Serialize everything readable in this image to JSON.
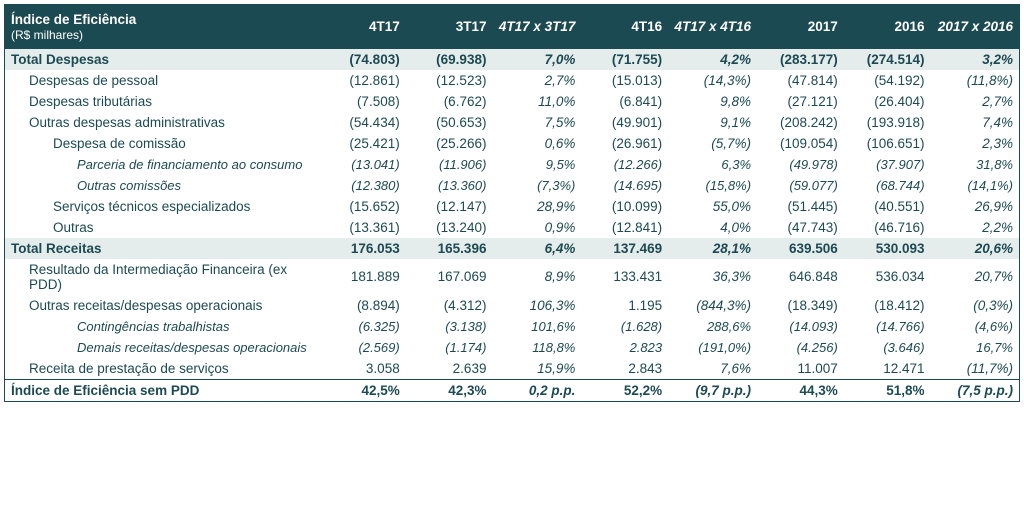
{
  "header": {
    "title_l1": "Índice de Eficiência",
    "title_l2": "(R$ milhares)",
    "cols": [
      "4T17",
      "3T17",
      "4T17 x 3T17",
      "4T16",
      "4T17 x 4T16",
      "2017",
      "2016",
      "2017 x 2016"
    ],
    "em_cols": [
      2,
      4,
      7
    ]
  },
  "rows": [
    {
      "type": "total",
      "label": "Total Despesas",
      "v": [
        "(74.803)",
        "(69.938)",
        "7,0%",
        "(71.755)",
        "4,2%",
        "(283.177)",
        "(274.514)",
        "3,2%"
      ]
    },
    {
      "type": "i1",
      "label": "Despesas de pessoal",
      "v": [
        "(12.861)",
        "(12.523)",
        "2,7%",
        "(15.013)",
        "(14,3%)",
        "(47.814)",
        "(54.192)",
        "(11,8%)"
      ]
    },
    {
      "type": "i1",
      "label": "Despesas tributárias",
      "v": [
        "(7.508)",
        "(6.762)",
        "11,0%",
        "(6.841)",
        "9,8%",
        "(27.121)",
        "(26.404)",
        "2,7%"
      ]
    },
    {
      "type": "i1",
      "label": "Outras despesas administrativas",
      "v": [
        "(54.434)",
        "(50.653)",
        "7,5%",
        "(49.901)",
        "9,1%",
        "(208.242)",
        "(193.918)",
        "7,4%"
      ]
    },
    {
      "type": "i2",
      "label": "Despesa de comissão",
      "v": [
        "(25.421)",
        "(25.266)",
        "0,6%",
        "(26.961)",
        "(5,7%)",
        "(109.054)",
        "(106.651)",
        "2,3%"
      ]
    },
    {
      "type": "i3",
      "label": "Parceria de financiamento ao consumo",
      "v": [
        "(13.041)",
        "(11.906)",
        "9,5%",
        "(12.266)",
        "6,3%",
        "(49.978)",
        "(37.907)",
        "31,8%"
      ]
    },
    {
      "type": "i3",
      "label": "Outras comissões",
      "v": [
        "(12.380)",
        "(13.360)",
        "(7,3%)",
        "(14.695)",
        "(15,8%)",
        "(59.077)",
        "(68.744)",
        "(14,1%)"
      ]
    },
    {
      "type": "i2",
      "label": "Serviços técnicos especializados",
      "v": [
        "(15.652)",
        "(12.147)",
        "28,9%",
        "(10.099)",
        "55,0%",
        "(51.445)",
        "(40.551)",
        "26,9%"
      ]
    },
    {
      "type": "i2",
      "label": "Outras",
      "v": [
        "(13.361)",
        "(13.240)",
        "0,9%",
        "(12.841)",
        "4,0%",
        "(47.743)",
        "(46.716)",
        "2,2%"
      ]
    },
    {
      "type": "total",
      "label": "Total Receitas",
      "v": [
        "176.053",
        "165.396",
        "6,4%",
        "137.469",
        "28,1%",
        "639.506",
        "530.093",
        "20,6%"
      ]
    },
    {
      "type": "i1",
      "label": "Resultado da Intermediação Financeira (ex PDD)",
      "v": [
        "181.889",
        "167.069",
        "8,9%",
        "133.431",
        "36,3%",
        "646.848",
        "536.034",
        "20,7%"
      ]
    },
    {
      "type": "i1",
      "label": "Outras receitas/despesas operacionais",
      "v": [
        "(8.894)",
        "(4.312)",
        "106,3%",
        "1.195",
        "(844,3%)",
        "(18.349)",
        "(18.412)",
        "(0,3%)"
      ]
    },
    {
      "type": "i3",
      "label": "Contingências trabalhistas",
      "v": [
        "(6.325)",
        "(3.138)",
        "101,6%",
        "(1.628)",
        "288,6%",
        "(14.093)",
        "(14.766)",
        "(4,6%)"
      ]
    },
    {
      "type": "i3",
      "label": "Demais receitas/despesas operacionais",
      "v": [
        "(2.569)",
        "(1.174)",
        "118,8%",
        "2.823",
        "(191,0%)",
        "(4.256)",
        "(3.646)",
        "16,7%"
      ]
    },
    {
      "type": "i1",
      "label": "Receita de prestação de serviços",
      "v": [
        "3.058",
        "2.639",
        "15,9%",
        "2.843",
        "7,6%",
        "11.007",
        "12.471",
        "(11,7%)"
      ]
    },
    {
      "type": "footer",
      "label": "Índice de Eficiência sem PDD",
      "v": [
        "42,5%",
        "42,3%",
        "0,2 p.p.",
        "52,2%",
        "(9,7 p.p.)",
        "44,3%",
        "51,8%",
        "(7,5 p.p.)"
      ]
    }
  ],
  "em_value_cols": [
    2,
    4,
    7
  ]
}
